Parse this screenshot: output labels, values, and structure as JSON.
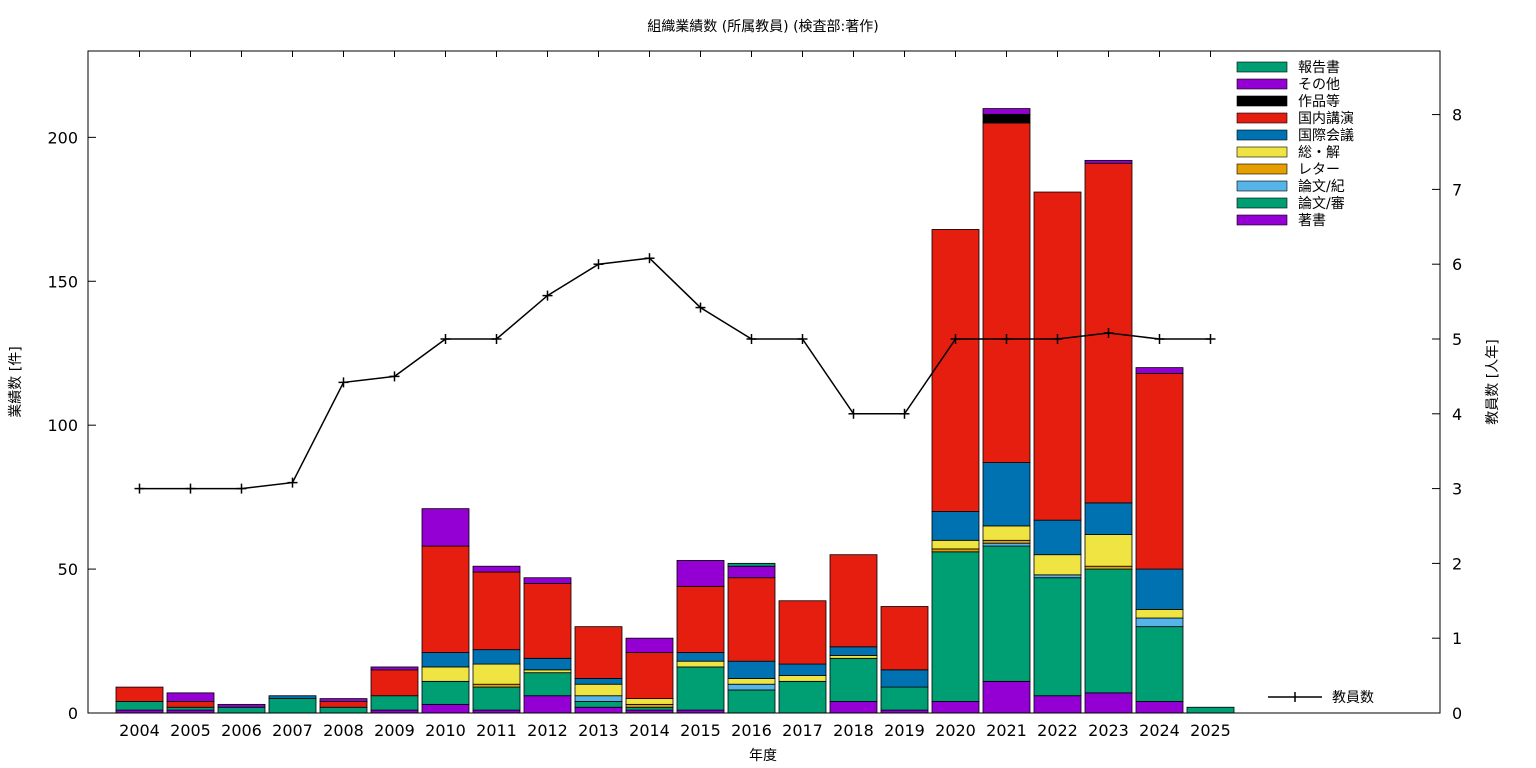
{
  "chart_data": {
    "type": "bar",
    "title": "組織業績数 (所属教員) (検査部:著作)",
    "xlabel": "年度",
    "ylabel": "業績数 [件]",
    "y2label": "教員数 [人年]",
    "ylim": [
      0,
      230
    ],
    "y2lim": [
      0,
      8.85
    ],
    "yticks": [
      0,
      50,
      100,
      150,
      200
    ],
    "y2ticks": [
      0,
      1,
      2,
      3,
      4,
      5,
      6,
      7,
      8
    ],
    "categories": [
      "2004",
      "2005",
      "2006",
      "2007",
      "2008",
      "2009",
      "2010",
      "2011",
      "2012",
      "2013",
      "2014",
      "2015",
      "2016",
      "2017",
      "2018",
      "2019",
      "2020",
      "2021",
      "2022",
      "2023",
      "2024",
      "2025"
    ],
    "stacked": true,
    "series": [
      {
        "name": "著書",
        "color": "#9400d3",
        "values": [
          1,
          1,
          0,
          0,
          0,
          1,
          3,
          1,
          6,
          2,
          1,
          1,
          0,
          0,
          4,
          1,
          4,
          11,
          6,
          7,
          4,
          0
        ]
      },
      {
        "name": "論文/審",
        "color": "#009e73",
        "values": [
          3,
          1,
          2,
          5,
          2,
          5,
          8,
          8,
          8,
          2,
          1,
          15,
          8,
          11,
          15,
          8,
          52,
          47,
          41,
          43,
          26,
          2
        ]
      },
      {
        "name": "論文/紀",
        "color": "#56b4e9",
        "values": [
          0,
          0,
          0,
          0,
          0,
          0,
          0,
          0,
          0,
          2,
          0,
          0,
          2,
          0,
          0,
          0,
          0,
          1,
          1,
          0,
          3,
          0
        ]
      },
      {
        "name": "レター",
        "color": "#e69f00",
        "values": [
          0,
          0,
          0,
          0,
          0,
          0,
          0,
          1,
          0,
          0,
          1,
          0,
          0,
          0,
          0,
          0,
          1,
          1,
          0,
          1,
          0,
          0
        ]
      },
      {
        "name": "総・解",
        "color": "#f0e442",
        "values": [
          0,
          0,
          0,
          0,
          0,
          0,
          5,
          7,
          1,
          4,
          2,
          2,
          2,
          2,
          1,
          0,
          3,
          5,
          7,
          11,
          3,
          0
        ]
      },
      {
        "name": "国際会議",
        "color": "#0072b2",
        "values": [
          0,
          0,
          0,
          1,
          0,
          0,
          5,
          5,
          4,
          2,
          0,
          3,
          6,
          4,
          3,
          6,
          10,
          22,
          12,
          11,
          14,
          0
        ]
      },
      {
        "name": "国内講演",
        "color": "#e51e10",
        "values": [
          5,
          2,
          0,
          0,
          2,
          9,
          37,
          27,
          26,
          18,
          16,
          23,
          29,
          22,
          32,
          22,
          98,
          118,
          114,
          118,
          68,
          0
        ]
      },
      {
        "name": "作品等",
        "color": "#000000",
        "values": [
          0,
          0,
          0,
          0,
          0,
          0,
          0,
          0,
          0,
          0,
          0,
          0,
          0,
          0,
          0,
          0,
          0,
          3,
          0,
          0,
          0,
          0
        ]
      },
      {
        "name": "その他",
        "color": "#9400d3",
        "values": [
          0,
          3,
          1,
          0,
          1,
          1,
          13,
          2,
          2,
          0,
          5,
          9,
          4,
          0,
          0,
          0,
          0,
          2,
          0,
          1,
          2,
          0
        ]
      },
      {
        "name": "報告書",
        "color": "#009e73",
        "values": [
          0,
          0,
          0,
          0,
          0,
          0,
          0,
          0,
          0,
          0,
          0,
          0,
          1,
          0,
          0,
          0,
          0,
          0,
          0,
          0,
          0,
          0
        ]
      }
    ],
    "line_series": {
      "name": "教員数",
      "color": "#000000",
      "axis": "y2",
      "values": [
        3,
        3,
        3,
        3.08,
        4.42,
        4.5,
        5,
        5,
        5.58,
        6,
        6.08,
        5.42,
        5,
        5,
        4,
        4,
        5,
        5,
        5,
        5.08,
        5,
        5
      ]
    },
    "legend_position": "top-right"
  }
}
